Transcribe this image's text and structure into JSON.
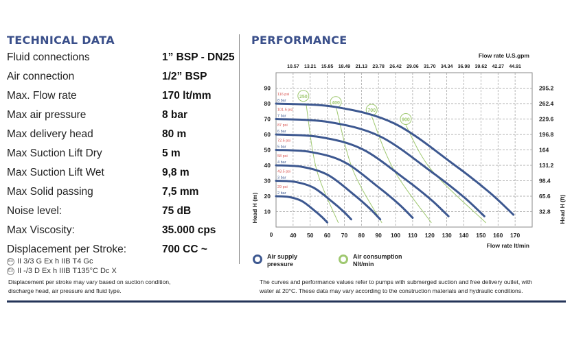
{
  "technical": {
    "title": "TECHNICAL DATA",
    "rows": [
      {
        "label": "Fluid connections",
        "value": "1” BSP - DN25"
      },
      {
        "label": "Air connection",
        "value": "1/2” BSP"
      },
      {
        "label": "Max. Flow rate",
        "value": "170 lt/mm"
      },
      {
        "label": "Max air pressure",
        "value": "8 bar"
      },
      {
        "label": "Max delivery head",
        "value": "80 m"
      },
      {
        "label": "Max Suction Lift Dry",
        "value": "5 m"
      },
      {
        "label": "Max Suction Lift Wet",
        "value": "9,8 m"
      },
      {
        "label": "Max Solid passing",
        "value": "7,5 mm"
      },
      {
        "label": "Noise level:",
        "value": "75 dB"
      },
      {
        "label": "Max Viscosity:",
        "value": "35.000 cps"
      },
      {
        "label": "Displacement per Stroke:",
        "value": "700 CC ~"
      }
    ],
    "atex": [
      "II 3/3 G Ex h IIB T4 Gc",
      "II -/3 D Ex h IIIB T135°C Dc X"
    ],
    "atex_icon": "ex-atex-icon",
    "note_lines": [
      "Displacement per stroke may vary based on suction condition,",
      "discharge head, air pressure and fluid type."
    ]
  },
  "performance": {
    "title": "PERFORMANCE",
    "note_lines": [
      "The curves and performance values refer to pumps with submerged suction and free delivery outlet, with",
      "water at 20°C. These data may vary according to the construction materials and hydraulic conditions."
    ]
  },
  "colors": {
    "title": "#3a4f8a",
    "curve": "#3d5890",
    "air": "#9fc870",
    "psi": "#d9534f",
    "bar": "#3d5890",
    "rule": "#243458"
  },
  "chart_data": {
    "type": "line",
    "xlabel": "Flow rate  lt/min",
    "x2label": "Flow rate U.S.gpm",
    "ylabel": "Head H (m)",
    "y2label": "Head H (ft)",
    "xlim": [
      30,
      180
    ],
    "ylim": [
      0,
      100
    ],
    "grid": true,
    "x_origin_label": "0",
    "x_ticks": [
      40,
      50,
      60,
      70,
      80,
      90,
      100,
      110,
      120,
      130,
      140,
      150,
      160,
      170
    ],
    "x_tick_labels": [
      "40",
      "50",
      "60",
      "70",
      "80",
      "90",
      "100",
      "110",
      "120",
      "130",
      "140",
      "150",
      "160",
      "170"
    ],
    "x2_tick_labels": [
      "10.57",
      "13.21",
      "15.85",
      "18.49",
      "21.13",
      "23.78",
      "26.42",
      "29.06",
      "31.70",
      "34.34",
      "36.98",
      "39.62",
      "42.27",
      "44.91"
    ],
    "y_ticks": [
      10,
      20,
      30,
      40,
      50,
      60,
      70,
      80,
      90
    ],
    "y_tick_labels": [
      "10",
      "20",
      "30",
      "40",
      "50",
      "60",
      "70",
      "80",
      "90"
    ],
    "y2_tick_labels": [
      "32.8",
      "65.6",
      "98.4",
      "131.2",
      "164",
      "196.8",
      "229.6",
      "262.4",
      "295.2"
    ],
    "pressure_series": [
      {
        "bar": "2 bar",
        "psi": "29 psi",
        "x": [
          30,
          37.5,
          45,
          52.5,
          57,
          60
        ],
        "y": [
          20,
          19.5,
          16.9,
          10.7,
          6.4,
          3
        ]
      },
      {
        "bar": "3 bar",
        "psi": "43.5 psi",
        "x": [
          30,
          41,
          52,
          63,
          69.6,
          74
        ],
        "y": [
          30,
          29.3,
          25.5,
          16.3,
          10,
          5
        ]
      },
      {
        "bar": "4 bar",
        "psi": "58 psi",
        "x": [
          30,
          45.3,
          60.5,
          75.8,
          84.9,
          91
        ],
        "y": [
          40,
          39,
          33.7,
          20.8,
          12,
          5
        ]
      },
      {
        "bar": "5 bar",
        "psi": "72.5 psi",
        "x": [
          30,
          50,
          70,
          90,
          102,
          110
        ],
        "y": [
          50,
          48.7,
          42.1,
          25.8,
          14.8,
          6
        ]
      },
      {
        "bar": "6 bar",
        "psi": "87 psi",
        "x": [
          30,
          55.3,
          80.5,
          105.8,
          120.9,
          131
        ],
        "y": [
          60,
          58.4,
          50.5,
          30.9,
          17.6,
          7
        ]
      },
      {
        "bar": "7 bar",
        "psi": "101.5 psi",
        "x": [
          30,
          60.5,
          91,
          121.5,
          139.8,
          152
        ],
        "y": [
          70,
          68.1,
          58.7,
          35.4,
          19.6,
          7
        ]
      },
      {
        "bar": "8 bar",
        "psi": "116 psi",
        "x": [
          30,
          64.8,
          99.5,
          134.3,
          155.1,
          169
        ],
        "y": [
          80,
          77.8,
          67,
          40.4,
          22.4,
          8
        ]
      }
    ],
    "air_series": [
      {
        "label": "250",
        "label_at": [
          46,
          85
        ],
        "x": [
          47.7,
          53.8,
          66.5
        ],
        "y": [
          79,
          37,
          2.7
        ]
      },
      {
        "label": "400",
        "label_at": [
          65,
          81
        ],
        "x": [
          65.3,
          75,
          92
        ],
        "y": [
          77,
          37,
          2.7
        ]
      },
      {
        "label": "700",
        "label_at": [
          86,
          76
        ],
        "x": [
          86,
          99,
          121
        ],
        "y": [
          71.7,
          37,
          2.7
        ]
      },
      {
        "label": "900",
        "label_at": [
          106,
          70
        ],
        "x": [
          106,
          121,
          153
        ],
        "y": [
          66,
          37,
          2.7
        ]
      }
    ],
    "legend": [
      {
        "label_lines": [
          "Air supply",
          "pressure"
        ],
        "color": "#3d5890"
      },
      {
        "label_lines": [
          "Air consumption",
          "Nlt/min"
        ],
        "color": "#9fc870"
      }
    ],
    "legend_position": "bottom-left"
  }
}
